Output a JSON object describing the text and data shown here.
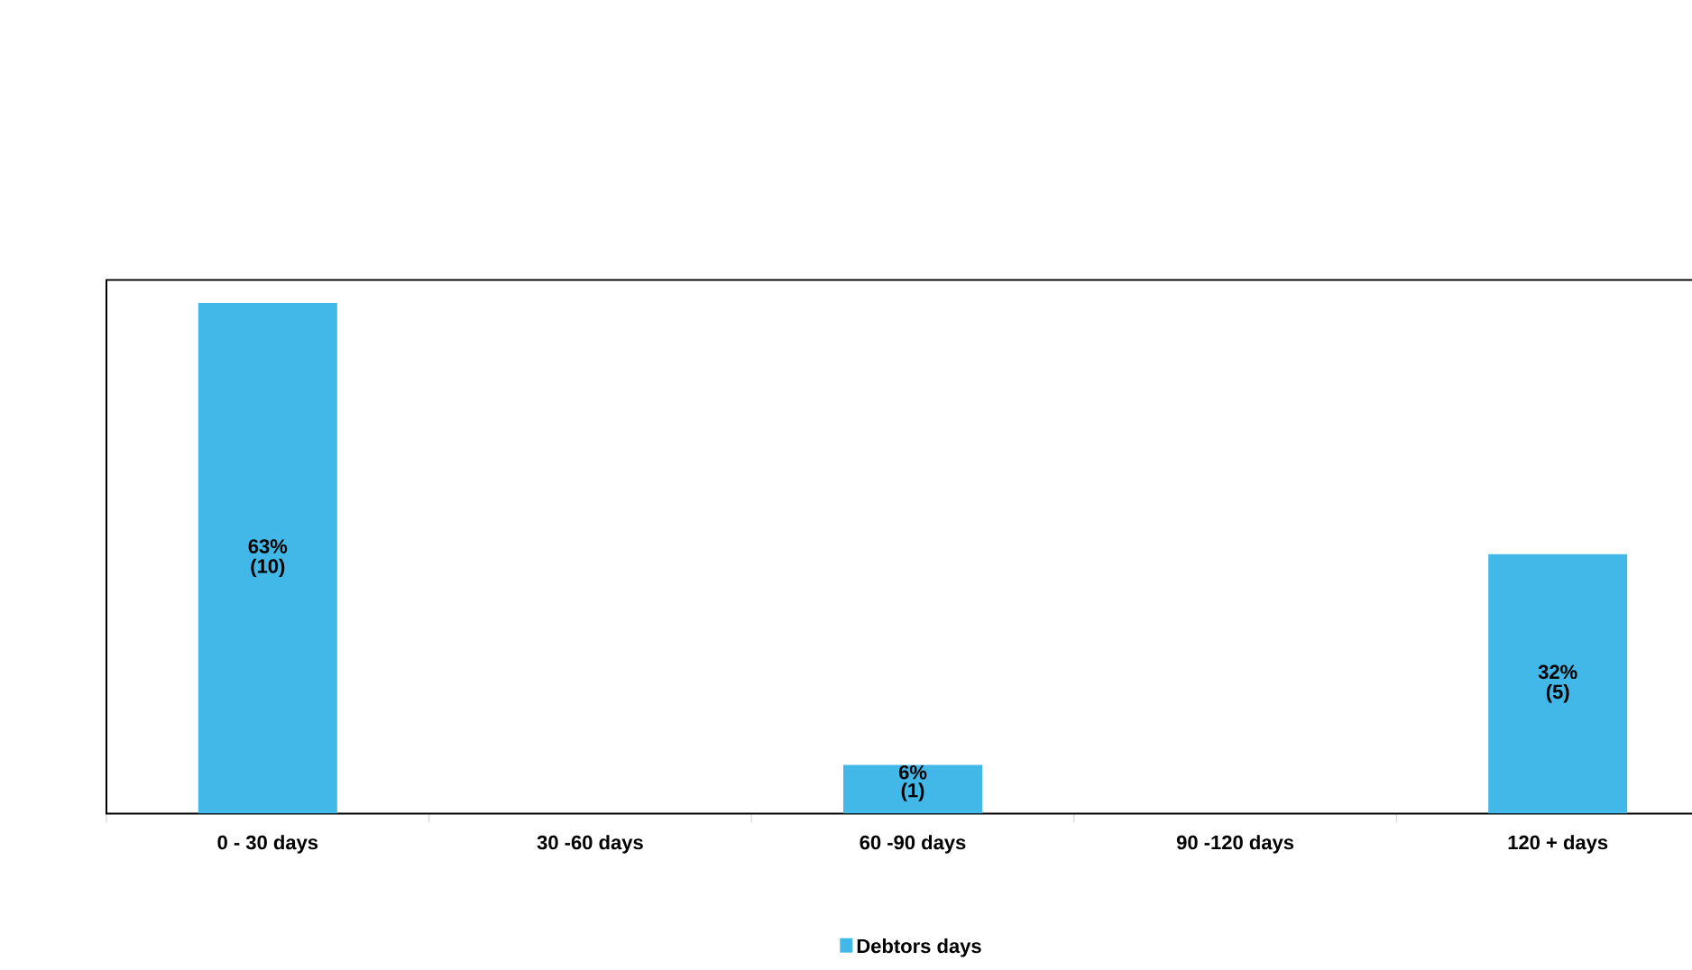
{
  "chart_data": {
    "type": "bar",
    "categories": [
      "0 - 30 days",
      "30 -60 days",
      "60 -90 days",
      "90 -120 days",
      "120 + days"
    ],
    "series": [
      {
        "name": "Debtors days",
        "color": "#41b8e8",
        "values": [
          63,
          0,
          6,
          0,
          32
        ],
        "value_labels": [
          "63% (10)",
          null,
          "6% (1)",
          null,
          "32% (5)"
        ]
      }
    ],
    "legend": "bottom"
  }
}
